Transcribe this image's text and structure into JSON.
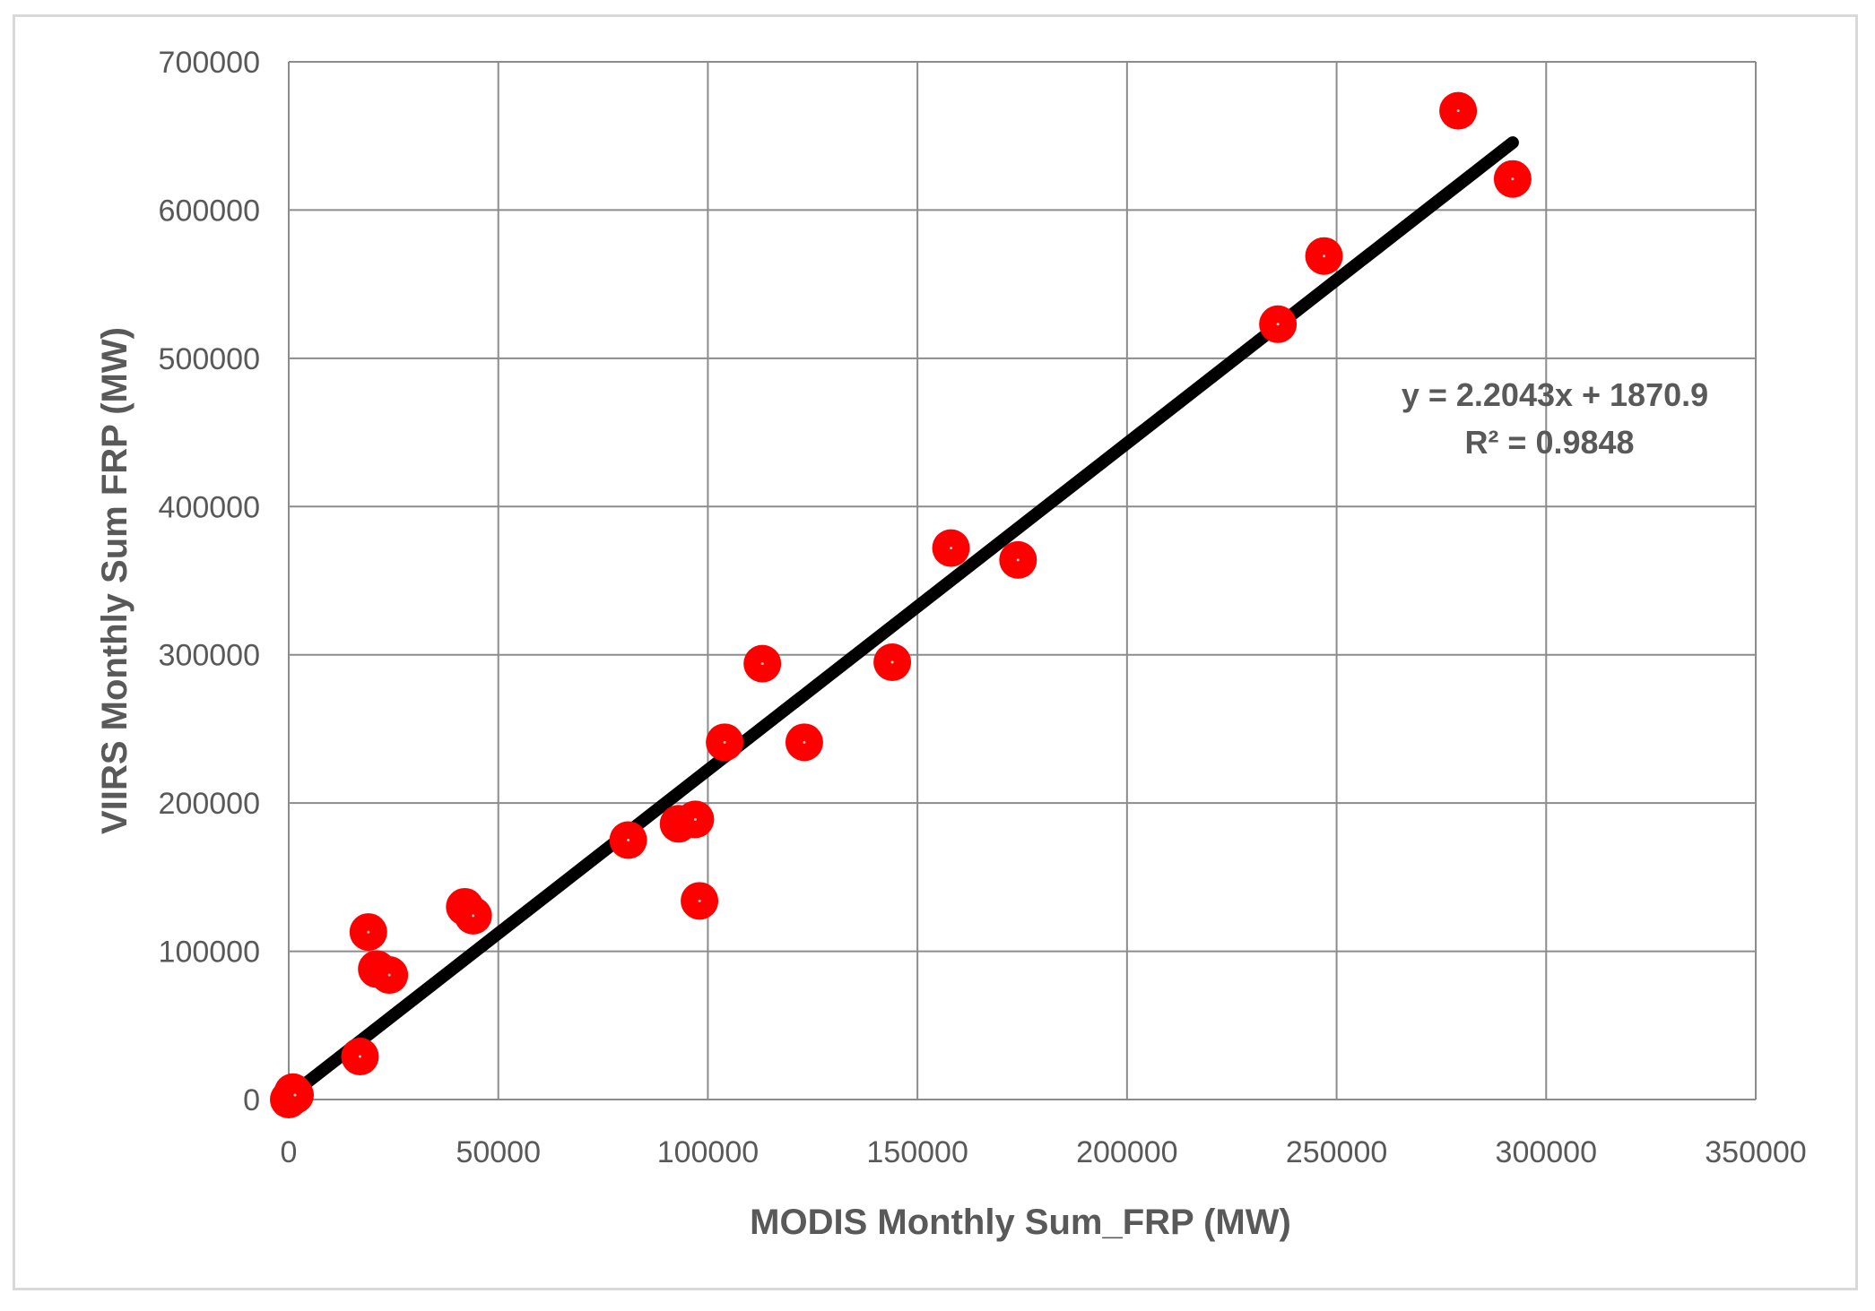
{
  "chart_data": {
    "type": "scatter",
    "title": "",
    "xlabel": "MODIS Monthly Sum_FRP (MW)",
    "ylabel": "VIIRS Monthly Sum FRP (MW)",
    "xlim": [
      0,
      350000
    ],
    "ylim": [
      0,
      700000
    ],
    "x_ticks": [
      0,
      50000,
      100000,
      150000,
      200000,
      250000,
      300000,
      350000
    ],
    "y_ticks": [
      0,
      100000,
      200000,
      300000,
      400000,
      500000,
      600000,
      700000
    ],
    "x_tick_labels": [
      "0",
      "50000",
      "100000",
      "150000",
      "200000",
      "250000",
      "300000",
      "350000"
    ],
    "y_tick_labels": [
      "0",
      "100000",
      "200000",
      "300000",
      "400000",
      "500000",
      "600000",
      "700000"
    ],
    "grid": true,
    "legend": "none",
    "marker_color": "#ff0000",
    "trendline_color": "#000000",
    "series": [
      {
        "name": "Monthly Sum FRP",
        "points": [
          {
            "x": 0,
            "y": 0
          },
          {
            "x": 500,
            "y": 2000
          },
          {
            "x": 1000,
            "y": 5000
          },
          {
            "x": 1500,
            "y": 3000
          },
          {
            "x": 17000,
            "y": 29000
          },
          {
            "x": 19000,
            "y": 113000
          },
          {
            "x": 21000,
            "y": 88000
          },
          {
            "x": 24000,
            "y": 84000
          },
          {
            "x": 42000,
            "y": 130000
          },
          {
            "x": 44000,
            "y": 124000
          },
          {
            "x": 81000,
            "y": 175000
          },
          {
            "x": 93000,
            "y": 186000
          },
          {
            "x": 97000,
            "y": 189000
          },
          {
            "x": 98000,
            "y": 134000
          },
          {
            "x": 104000,
            "y": 241000
          },
          {
            "x": 113000,
            "y": 294000
          },
          {
            "x": 123000,
            "y": 241000
          },
          {
            "x": 144000,
            "y": 295000
          },
          {
            "x": 158000,
            "y": 372000
          },
          {
            "x": 174000,
            "y": 364000
          },
          {
            "x": 236000,
            "y": 523000
          },
          {
            "x": 247000,
            "y": 569000
          },
          {
            "x": 279000,
            "y": 667000
          },
          {
            "x": 292000,
            "y": 621000
          }
        ]
      }
    ],
    "trendline": {
      "slope": 2.2043,
      "intercept": 1870.9,
      "x_range": [
        0,
        292000
      ],
      "equation": "y = 2.2043x + 1870.9",
      "r_squared": "R² = 0.9848"
    }
  }
}
